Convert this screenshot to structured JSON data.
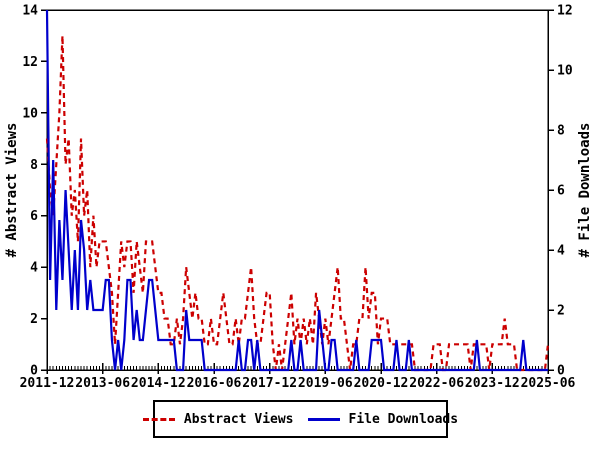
{
  "chart_data": {
    "type": "line",
    "title": "",
    "x_axis": {
      "unit": "month",
      "start": "2011-12",
      "end": "2025-06",
      "months_total": 163,
      "major_tick_every_months": 18,
      "tick_labels": [
        "2011-12",
        "2013-06",
        "2014-12",
        "2016-06",
        "2017-12",
        "2019-06",
        "2020-12",
        "2022-06",
        "2023-12",
        "2025-06"
      ]
    },
    "left_axis": {
      "label": "# Abstract Views",
      "min": 0,
      "max": 14,
      "tick_step": 2
    },
    "right_axis": {
      "label": "# File Downloads",
      "min": 0,
      "max": 12,
      "tick_step": 2
    },
    "grid": false,
    "legend_position": "bottom",
    "series": [
      {
        "name": "Abstract Views",
        "axis": "left",
        "color": "#cc0000",
        "line_style": "dashed",
        "values": [
          9,
          7,
          6,
          8,
          10,
          13,
          8,
          9,
          6,
          7,
          5,
          9,
          6,
          7,
          4,
          6,
          4,
          5,
          5,
          5,
          4,
          3,
          1,
          3,
          5,
          4,
          5,
          5,
          3,
          5,
          4,
          3,
          5,
          5,
          5,
          4,
          3,
          3,
          2,
          2,
          1,
          1,
          2,
          1,
          2,
          4,
          3,
          2,
          3,
          2,
          2,
          1,
          1,
          2,
          1,
          1,
          2,
          3,
          2,
          1,
          1,
          2,
          1,
          2,
          2,
          3,
          4,
          2,
          1,
          1,
          2,
          3,
          3,
          1,
          0,
          1,
          0,
          1,
          2,
          3,
          1,
          2,
          1,
          2,
          1,
          2,
          1,
          3,
          2,
          1,
          2,
          1,
          2,
          3,
          4,
          2,
          2,
          1,
          0,
          1,
          1,
          2,
          2,
          4,
          2,
          3,
          3,
          1,
          2,
          2,
          2,
          1,
          1,
          1,
          1,
          1,
          1,
          1,
          1,
          0,
          0,
          0,
          0,
          0,
          0,
          1,
          1,
          1,
          0,
          0,
          1,
          1,
          1,
          1,
          1,
          1,
          1,
          0,
          1,
          1,
          1,
          1,
          1,
          0,
          1,
          1,
          1,
          1,
          2,
          1,
          1,
          1,
          0,
          0,
          0,
          0,
          0,
          0,
          0,
          0,
          0,
          0,
          1
        ]
      },
      {
        "name": "File Downloads",
        "axis": "right",
        "color": "#0000cc",
        "line_style": "solid",
        "values": [
          12,
          3,
          7,
          2,
          5,
          3,
          6,
          4,
          2,
          4,
          2,
          5,
          4,
          2,
          3,
          2,
          2,
          2,
          2,
          3,
          3,
          1,
          0,
          1,
          0,
          1,
          3,
          3,
          1,
          2,
          1,
          1,
          2,
          3,
          3,
          2,
          1,
          1,
          1,
          1,
          1,
          1,
          0,
          0,
          0,
          2,
          1,
          1,
          1,
          1,
          1,
          0,
          0,
          0,
          0,
          0,
          0,
          0,
          0,
          0,
          0,
          0,
          1,
          0,
          0,
          1,
          1,
          0,
          1,
          0,
          0,
          0,
          0,
          0,
          0,
          0,
          0,
          0,
          0,
          1,
          0,
          0,
          1,
          0,
          0,
          0,
          0,
          0,
          2,
          1,
          0,
          0,
          1,
          1,
          0,
          0,
          0,
          0,
          0,
          0,
          1,
          0,
          0,
          0,
          0,
          1,
          1,
          1,
          1,
          0,
          0,
          0,
          0,
          1,
          0,
          0,
          0,
          1,
          0,
          0,
          0,
          0,
          0,
          0,
          0,
          0,
          0,
          0,
          0,
          0,
          0,
          0,
          0,
          0,
          0,
          0,
          0,
          0,
          0,
          1,
          0,
          0,
          0,
          0,
          0,
          0,
          0,
          0,
          0,
          0,
          0,
          0,
          0,
          0,
          1,
          0,
          0,
          0,
          0,
          0,
          0,
          0,
          0
        ]
      }
    ]
  },
  "colors": {
    "background": "#ffffff",
    "axis": "#000000",
    "abstract_views": "#cc0000",
    "file_downloads": "#0000cc",
    "legend_border": "#000000"
  },
  "layout_values": {
    "left_tick_values": [
      0,
      2,
      4,
      6,
      8,
      10,
      12,
      14
    ],
    "right_tick_values": [
      0,
      2,
      4,
      6,
      8,
      10,
      12
    ]
  }
}
